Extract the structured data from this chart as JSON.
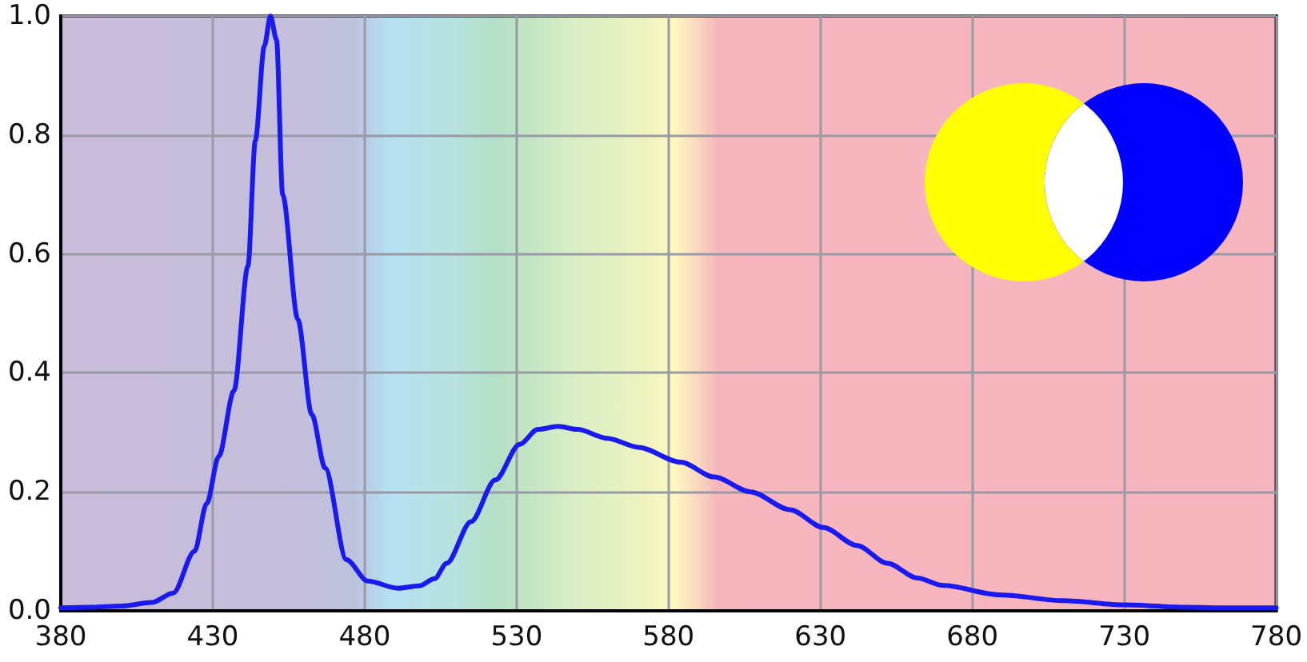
{
  "chart_data": {
    "type": "line",
    "xlim": [
      380,
      780
    ],
    "ylim": [
      0,
      1
    ],
    "xticks": [
      380,
      430,
      480,
      530,
      580,
      630,
      680,
      730,
      780
    ],
    "yticks": [
      {
        "value": 0,
        "label": "0.0"
      },
      0.2,
      0.4,
      0.6,
      0.8,
      {
        "value": 1,
        "label": "1.0"
      }
    ],
    "grid": true,
    "marker": "none",
    "line_style": "solid",
    "series": [
      {
        "color": "#1a1aee",
        "x": [
          380,
          390,
          400,
          410,
          417,
          424,
          428,
          432,
          437,
          441.6,
          444,
          447,
          449,
          451,
          453,
          458,
          462.6,
          467,
          474,
          481,
          491,
          498,
          503,
          507,
          515,
          523,
          531,
          537,
          543.7,
          550,
          560,
          570,
          584,
          595,
          607,
          620,
          631,
          642,
          652,
          662,
          670,
          689,
          710,
          730,
          750,
          765,
          780
        ],
        "values": [
          0.005,
          0.006,
          0.008,
          0.014,
          0.03,
          0.1,
          0.18,
          0.26,
          0.37,
          0.58,
          0.79,
          0.95,
          1.0,
          0.96,
          0.7,
          0.49,
          0.33,
          0.24,
          0.086,
          0.05,
          0.038,
          0.042,
          0.054,
          0.08,
          0.15,
          0.22,
          0.28,
          0.305,
          0.31,
          0.305,
          0.29,
          0.275,
          0.25,
          0.225,
          0.2,
          0.17,
          0.14,
          0.11,
          0.08,
          0.055,
          0.043,
          0.027,
          0.017,
          0.01,
          0.006,
          0.005,
          0.005
        ]
      }
    ]
  }
}
